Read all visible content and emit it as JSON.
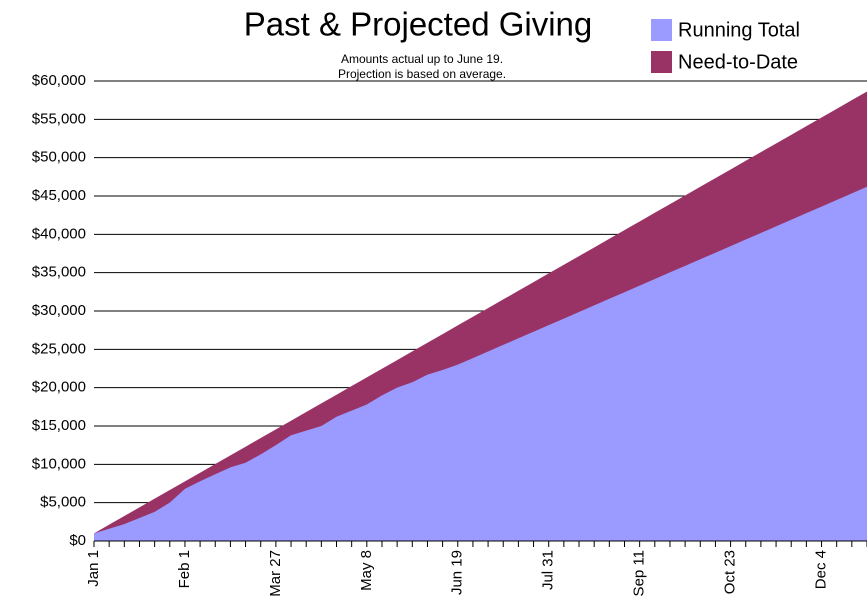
{
  "chart_data": {
    "type": "area",
    "title": "Past & Projected Giving",
    "subtitle": [
      "Amounts actual up to June 19.",
      "Projection is based on average."
    ],
    "categories": [
      "Jan 1",
      null,
      null,
      null,
      null,
      null,
      "Feb 1",
      null,
      null,
      null,
      null,
      null,
      "Mar 27",
      null,
      null,
      null,
      null,
      null,
      "May 8",
      null,
      null,
      null,
      null,
      null,
      "Jun 19",
      null,
      null,
      null,
      null,
      null,
      "Jul 31",
      null,
      null,
      null,
      null,
      null,
      "Sep 11",
      null,
      null,
      null,
      null,
      null,
      "Oct 23",
      null,
      null,
      null,
      null,
      null,
      "Dec 4",
      null,
      null,
      null
    ],
    "series": [
      {
        "name": "Running Total",
        "color": "#9b9bff",
        "values": [
          1000,
          1600,
          2200,
          3000,
          3800,
          5000,
          6800,
          7800,
          8700,
          9600,
          10200,
          11300,
          12500,
          13800,
          14400,
          15000,
          16200,
          17000,
          17800,
          19000,
          20000,
          20700,
          21700,
          22300,
          23000,
          23860,
          24720,
          25580,
          26440,
          27300,
          28150,
          29010,
          29870,
          30730,
          31590,
          32450,
          33310,
          34170,
          35030,
          35890,
          36750,
          37600,
          38460,
          39320,
          40180,
          41040,
          41900,
          42760,
          43620,
          44480,
          45340,
          46200
        ]
      },
      {
        "name": "Need-to-Date",
        "color": "#993366",
        "values": [
          1000,
          2130,
          3260,
          4390,
          5520,
          6650,
          7780,
          8910,
          10040,
          11170,
          12300,
          13430,
          14560,
          15690,
          16820,
          17950,
          19080,
          20210,
          21340,
          22470,
          23600,
          24730,
          25860,
          26990,
          28120,
          29250,
          30380,
          31510,
          32640,
          33770,
          34900,
          36030,
          37160,
          38290,
          39420,
          40550,
          41680,
          42810,
          43940,
          45070,
          46200,
          47330,
          48460,
          49590,
          50720,
          51850,
          52980,
          54110,
          55240,
          56370,
          57500,
          58630
        ]
      }
    ],
    "ylim": [
      0,
      60000
    ],
    "yticks": [
      {
        "value": 0,
        "label": "$0"
      },
      {
        "value": 5000,
        "label": "$5,000"
      },
      {
        "value": 10000,
        "label": "$10,000"
      },
      {
        "value": 15000,
        "label": "$15,000"
      },
      {
        "value": 20000,
        "label": "$20,000"
      },
      {
        "value": 25000,
        "label": "$25,000"
      },
      {
        "value": 30000,
        "label": "$30,000"
      },
      {
        "value": 35000,
        "label": "$35,000"
      },
      {
        "value": 40000,
        "label": "$40,000"
      },
      {
        "value": 45000,
        "label": "$45,000"
      },
      {
        "value": 50000,
        "label": "$50,000"
      },
      {
        "value": 55000,
        "label": "$55,000"
      },
      {
        "value": 60000,
        "label": "$60,000"
      }
    ],
    "grid": true,
    "legend": "top-right"
  }
}
